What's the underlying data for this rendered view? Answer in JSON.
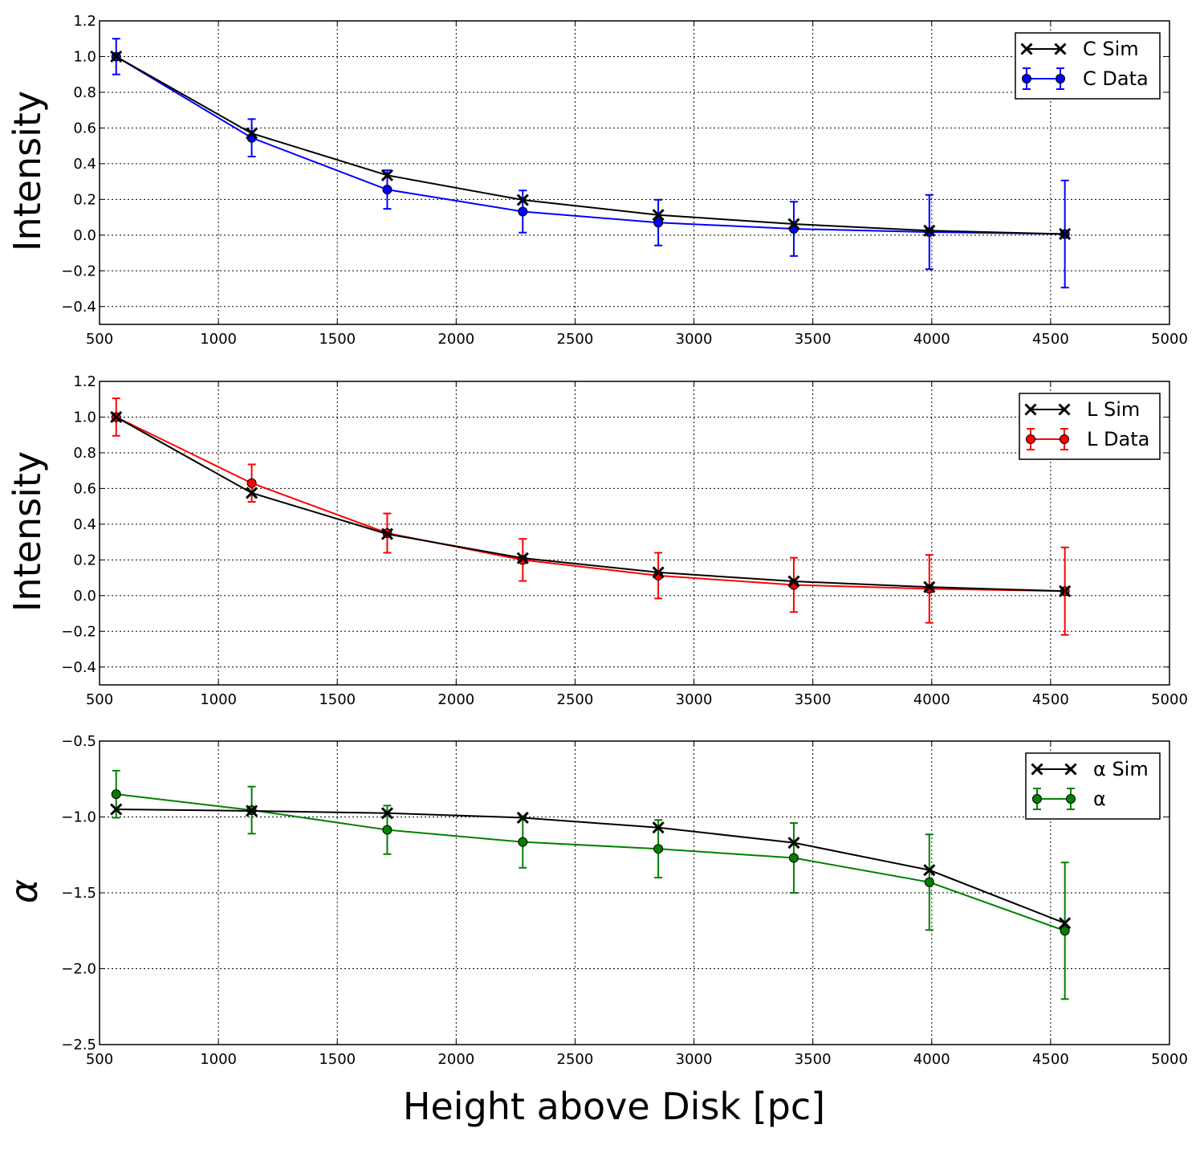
{
  "chart_data": [
    {
      "type": "line",
      "ylabel": "Intensity",
      "xlabel": "",
      "xlim": [
        500,
        5000
      ],
      "ylim": [
        -0.5,
        1.2
      ],
      "xticks": [
        "500",
        "1000",
        "1500",
        "2000",
        "2500",
        "3000",
        "3500",
        "4000",
        "4500",
        "5000"
      ],
      "yticks": [
        "1.2",
        "1.0",
        "0.8",
        "0.6",
        "0.4",
        "0.2",
        "0.0",
        "−0.2",
        "−0.4"
      ],
      "ytick_values": [
        1.2,
        1.0,
        0.8,
        0.6,
        0.4,
        0.2,
        0.0,
        -0.2,
        -0.4
      ],
      "grid": true,
      "legend_position": "top-right",
      "x": [
        570,
        1140,
        1710,
        2280,
        2850,
        3420,
        3990,
        4560
      ],
      "series": [
        {
          "name": "C Sim",
          "color": "#000000",
          "marker": "x",
          "values": [
            1.0,
            0.57,
            0.335,
            0.197,
            0.113,
            0.062,
            0.025,
            0.006
          ]
        },
        {
          "name": "C Data",
          "color": "#0000ff",
          "marker": "o",
          "values": [
            1.0,
            0.545,
            0.255,
            0.132,
            0.07,
            0.035,
            0.017,
            0.006
          ],
          "err": [
            0.1,
            0.105,
            0.108,
            0.118,
            0.128,
            0.152,
            0.208,
            0.3
          ]
        }
      ]
    },
    {
      "type": "line",
      "ylabel": "Intensity",
      "xlabel": "",
      "xlim": [
        500,
        5000
      ],
      "ylim": [
        -0.5,
        1.2
      ],
      "xticks": [
        "500",
        "1000",
        "1500",
        "2000",
        "2500",
        "3000",
        "3500",
        "4000",
        "4500",
        "5000"
      ],
      "yticks": [
        "1.2",
        "1.0",
        "0.8",
        "0.6",
        "0.4",
        "0.2",
        "0.0",
        "−0.2",
        "−0.4"
      ],
      "ytick_values": [
        1.2,
        1.0,
        0.8,
        0.6,
        0.4,
        0.2,
        0.0,
        -0.2,
        -0.4
      ],
      "grid": true,
      "legend_position": "top-right",
      "x": [
        570,
        1140,
        1710,
        2280,
        2850,
        3420,
        3990,
        4560
      ],
      "series": [
        {
          "name": "L Sim",
          "color": "#000000",
          "marker": "x",
          "values": [
            1.0,
            0.575,
            0.345,
            0.21,
            0.13,
            0.08,
            0.048,
            0.025
          ]
        },
        {
          "name": "L Data",
          "color": "#ff0000",
          "marker": "o",
          "values": [
            1.0,
            0.63,
            0.35,
            0.2,
            0.112,
            0.06,
            0.038,
            0.025
          ],
          "err": [
            0.105,
            0.105,
            0.11,
            0.118,
            0.128,
            0.152,
            0.19,
            0.245
          ]
        }
      ]
    },
    {
      "type": "line",
      "ylabel": "α",
      "xlabel": "Height above Disk [pc]",
      "xlim": [
        500,
        5000
      ],
      "ylim": [
        -2.5,
        -0.5
      ],
      "xticks": [
        "500",
        "1000",
        "1500",
        "2000",
        "2500",
        "3000",
        "3500",
        "4000",
        "4500",
        "5000"
      ],
      "yticks": [
        "−0.5",
        "−1.0",
        "−1.5",
        "−2.0",
        "−2.5"
      ],
      "ytick_values": [
        -0.5,
        -1.0,
        -1.5,
        -2.0,
        -2.5
      ],
      "grid": true,
      "legend_position": "top-right",
      "x": [
        570,
        1140,
        1710,
        2280,
        2850,
        3420,
        3990,
        4560
      ],
      "series": [
        {
          "name": "α Sim",
          "color": "#000000",
          "marker": "x",
          "values": [
            -0.95,
            -0.96,
            -0.975,
            -1.005,
            -1.07,
            -1.17,
            -1.35,
            -1.7
          ]
        },
        {
          "name": "α",
          "color": "#008000",
          "marker": "o",
          "values": [
            -0.85,
            -0.955,
            -1.085,
            -1.165,
            -1.21,
            -1.27,
            -1.43,
            -1.75
          ],
          "err": [
            0.155,
            0.155,
            0.16,
            0.17,
            0.19,
            0.23,
            0.315,
            0.45
          ]
        }
      ]
    }
  ]
}
